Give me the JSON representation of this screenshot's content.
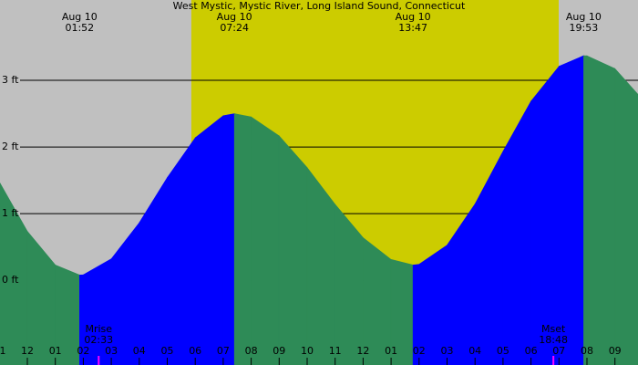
{
  "chart_data": {
    "type": "tide",
    "title": "West Mystic, Mystic River, Long Island Sound, Connecticut",
    "x": [
      -1,
      0,
      1,
      1.867,
      2,
      3,
      4,
      5,
      6,
      7,
      7.4,
      8,
      9,
      10,
      11,
      12,
      13,
      13.783,
      14,
      15,
      16,
      17,
      18,
      19,
      19.883,
      20,
      21,
      22
    ],
    "values": [
      1.476,
      0.736,
      0.23,
      0.08,
      0.083,
      0.322,
      0.864,
      1.54,
      2.138,
      2.469,
      2.5,
      2.451,
      2.166,
      1.691,
      1.139,
      0.64,
      0.313,
      0.23,
      0.24,
      0.528,
      1.146,
      1.935,
      2.687,
      3.21,
      3.37,
      3.368,
      3.175,
      2.707
    ],
    "rising_color": "#0000ff",
    "falling_color": "#2e8b57",
    "night_color": "#c0c0c0",
    "day_color": "#cccc00",
    "daylight": [
      5.86,
      18.99
    ],
    "extremes": [
      {
        "date": "Aug 10",
        "time": "01:52",
        "x": 1.867
      },
      {
        "date": "Aug 10",
        "time": "07:24",
        "x": 7.4
      },
      {
        "date": "Aug 10",
        "time": "13:47",
        "x": 13.783
      },
      {
        "date": "Aug 10",
        "time": "19:53",
        "x": 19.883
      }
    ],
    "moon_events": [
      {
        "label": "Mrise",
        "time": "02:33",
        "x": 2.55
      },
      {
        "label": "Mset",
        "time": "18:48",
        "x": 18.8
      }
    ],
    "moon_color": "#ff00ff",
    "xlim": [
      -0.977,
      21.824
    ],
    "xticks": [
      {
        "value": -1,
        "label": "1"
      },
      {
        "value": 0,
        "label": "12"
      },
      {
        "value": 1,
        "label": "01"
      },
      {
        "value": 2,
        "label": "02"
      },
      {
        "value": 3,
        "label": "03"
      },
      {
        "value": 4,
        "label": "04"
      },
      {
        "value": 5,
        "label": "05"
      },
      {
        "value": 6,
        "label": "06"
      },
      {
        "value": 7,
        "label": "07"
      },
      {
        "value": 8,
        "label": "08"
      },
      {
        "value": 9,
        "label": "09"
      },
      {
        "value": 10,
        "label": "10"
      },
      {
        "value": 11,
        "label": "11"
      },
      {
        "value": 12,
        "label": "12"
      },
      {
        "value": 13,
        "label": "01"
      },
      {
        "value": 14,
        "label": "02"
      },
      {
        "value": 15,
        "label": "03"
      },
      {
        "value": 16,
        "label": "04"
      },
      {
        "value": 17,
        "label": "05"
      },
      {
        "value": 18,
        "label": "06"
      },
      {
        "value": 19,
        "label": "07"
      },
      {
        "value": 20,
        "label": "08"
      },
      {
        "value": 21,
        "label": "09"
      }
    ],
    "ylim": [
      -1.27,
      4.205
    ],
    "yticks": [
      {
        "value": 0,
        "label": "0 ft"
      },
      {
        "value": 1,
        "label": "1 ft"
      },
      {
        "value": 2,
        "label": "2 ft"
      },
      {
        "value": 3,
        "label": "3 ft"
      }
    ],
    "grid": true
  }
}
